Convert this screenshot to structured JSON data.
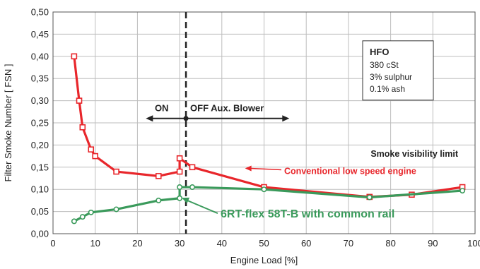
{
  "chart_data": {
    "type": "line",
    "xlabel": "Engine Load [%]",
    "ylabel": "Filter Smoke Number [ FSN ]",
    "xlim": [
      0,
      100
    ],
    "ylim": [
      0,
      0.5
    ],
    "x_ticks": [
      "0",
      "10",
      "20",
      "30",
      "40",
      "50",
      "60",
      "70",
      "80",
      "90",
      "100"
    ],
    "y_ticks": [
      "0,00",
      "0,05",
      "0,10",
      "0,15",
      "0,20",
      "0,25",
      "0,30",
      "0,35",
      "0,40",
      "0,45",
      "0,50"
    ],
    "grid": true,
    "series": [
      {
        "name": "Conventional low speed engine",
        "color": "#e8262b",
        "marker": "square",
        "points": [
          [
            5,
            0.4
          ],
          [
            6.2,
            0.3
          ],
          [
            7,
            0.24
          ],
          [
            9,
            0.19
          ],
          [
            10,
            0.175
          ],
          [
            15,
            0.14
          ],
          [
            25,
            0.13
          ],
          [
            30,
            0.14
          ],
          [
            30,
            0.17
          ],
          [
            33,
            0.15
          ],
          [
            50,
            0.105
          ],
          [
            75,
            0.083
          ],
          [
            85,
            0.088
          ],
          [
            97,
            0.105
          ]
        ]
      },
      {
        "name": "6RT-flex 58T-B with common rail",
        "color": "#3a9a5b",
        "marker": "circle",
        "points": [
          [
            5,
            0.028
          ],
          [
            7,
            0.038
          ],
          [
            9,
            0.048
          ],
          [
            15,
            0.055
          ],
          [
            25,
            0.075
          ],
          [
            30,
            0.08
          ],
          [
            30,
            0.105
          ],
          [
            33,
            0.105
          ],
          [
            50,
            0.1
          ],
          [
            75,
            0.082
          ],
          [
            97,
            0.097
          ]
        ]
      }
    ],
    "annotations": {
      "smoke_limit": "Smoke visibility limit",
      "on_label": "ON",
      "off_label": "OFF Aux. Blower",
      "blower_switch_x": 31.5,
      "blower_arrow_x": [
        22,
        56
      ],
      "blower_arrow_y": 0.26,
      "conventional_label": "Conventional low speed engine",
      "common_rail_label": "6RT-flex 58T-B with common rail",
      "hfo_title": "HFO",
      "hfo_lines": [
        "380 cSt",
        "3% sulphur",
        "0.1% ash"
      ]
    }
  }
}
